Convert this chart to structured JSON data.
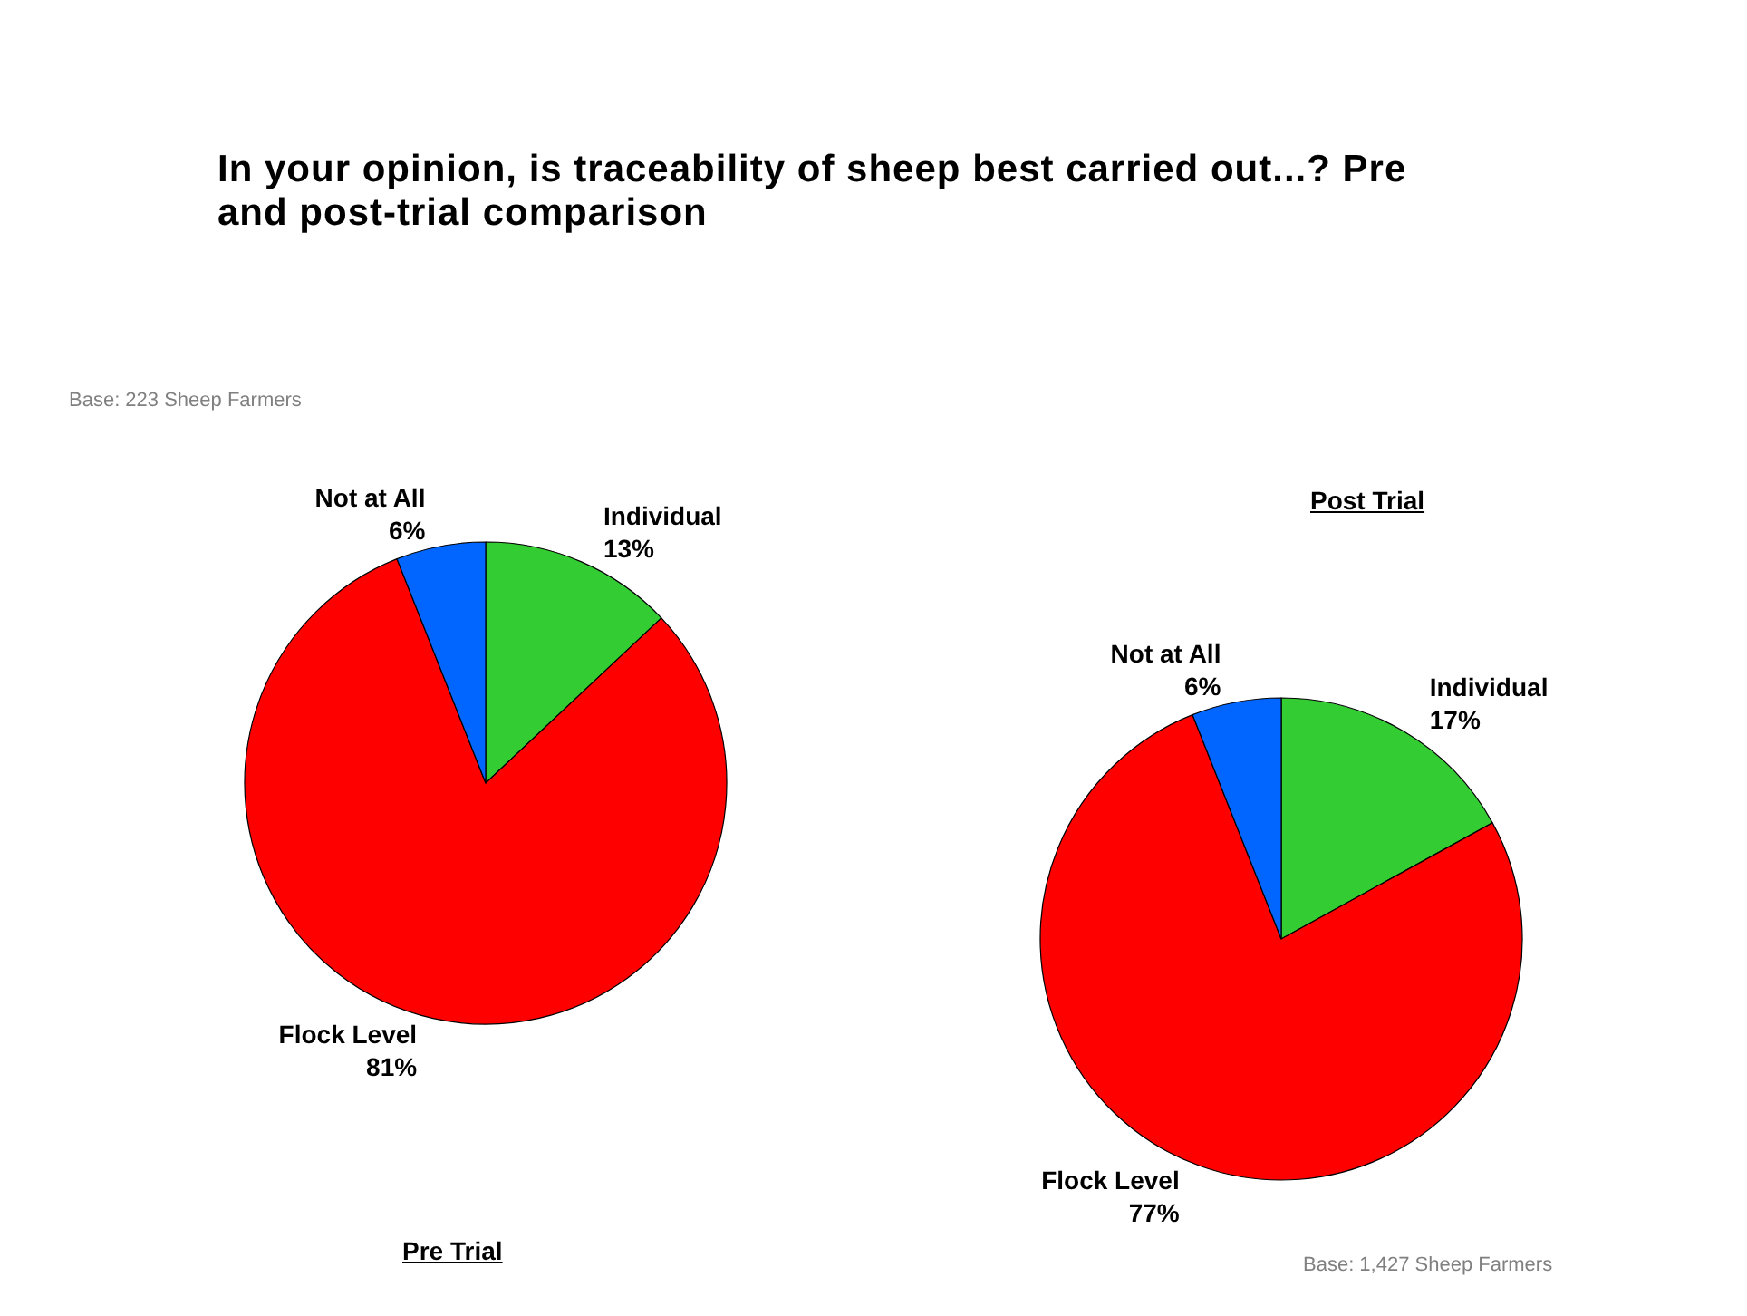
{
  "chart_data": [
    {
      "type": "pie",
      "title": "In your opinion, is traceability of sheep best carried out...?  Pre and post-trial comparison",
      "subtitle": "Pre Trial",
      "annotations": [
        "Base: 223 Sheep Farmers"
      ],
      "categories": [
        "Individual",
        "Flock Level",
        "Not at All"
      ],
      "values": [
        13,
        81,
        6
      ],
      "value_labels": [
        "13%",
        "81%",
        "6%"
      ],
      "colors": [
        "#33cc33",
        "#ff0000",
        "#0066ff"
      ]
    },
    {
      "type": "pie",
      "subtitle": "Post Trial",
      "annotations": [
        "Base: 1,427 Sheep Farmers"
      ],
      "categories": [
        "Individual",
        "Flock Level",
        "Not at All"
      ],
      "values": [
        17,
        77,
        6
      ],
      "value_labels": [
        "17%",
        "77%",
        "6%"
      ],
      "colors": [
        "#33cc33",
        "#ff0000",
        "#0066ff"
      ]
    }
  ]
}
